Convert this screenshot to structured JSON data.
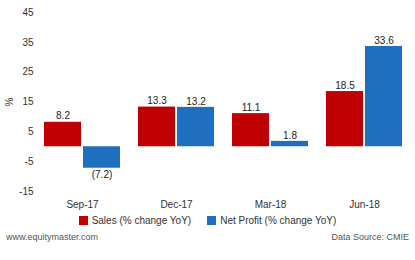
{
  "chart_data": {
    "type": "bar",
    "categories": [
      "Sep-17",
      "Dec-17",
      "Mar-18",
      "Jun-18"
    ],
    "series": [
      {
        "name": "Sales (% change YoY)",
        "color": "#c00000",
        "values": [
          8.2,
          13.3,
          11.1,
          18.5
        ],
        "value_labels": [
          "8.2",
          "13.3",
          "11.1",
          "18.5"
        ]
      },
      {
        "name": "Net Profit (% change YoY)",
        "color": "#1f6fc0",
        "values": [
          -7.2,
          13.2,
          1.8,
          33.6
        ],
        "value_labels": [
          "(7.2)",
          "13.2",
          "1.8",
          "33.6"
        ]
      }
    ],
    "y_label": "%",
    "ylim": [
      -15,
      45
    ],
    "yticks": [
      -15,
      -5,
      5,
      15,
      25,
      35,
      45
    ],
    "grid": false,
    "data_labels": true,
    "legend": "bottom",
    "annotations": [
      "www.equitymaster.com",
      "Data Source: CMIE"
    ]
  }
}
